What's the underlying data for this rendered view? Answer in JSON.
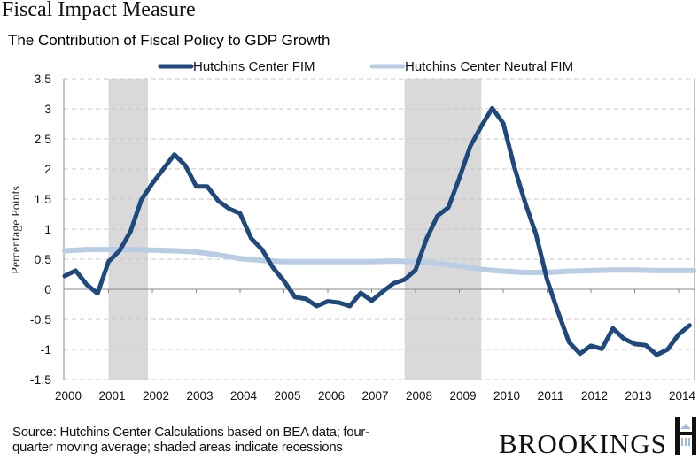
{
  "header": {
    "title": "Fiscal Impact Measure"
  },
  "footer": {
    "source_line1": "Source: Hutchins Center Calculations based on BEA data; four-",
    "source_line2": "quarter moving average; shaded areas indicate recessions",
    "brand": "BROOKINGS"
  },
  "chart_data": {
    "type": "line",
    "title": "The Contribution  of Fiscal Policy to GDP Growth",
    "xlabel": "",
    "ylabel": "Percentage Points",
    "ylim": [
      -1.5,
      3.5
    ],
    "xlim": [
      2000,
      2014.35
    ],
    "yticks": [
      "3.5",
      "3",
      "2.5",
      "2",
      "1.5",
      "1",
      "0.5",
      "0",
      "-0.5",
      "-1",
      "-1.5"
    ],
    "ytick_values": [
      3.5,
      3,
      2.5,
      2,
      1.5,
      1,
      0.5,
      0,
      -0.5,
      -1,
      -1.5
    ],
    "xticks": [
      "2000",
      "2001",
      "2002",
      "2003",
      "2004",
      "2005",
      "2006",
      "2007",
      "2008",
      "2009",
      "2010",
      "2011",
      "2012",
      "2013",
      "2014"
    ],
    "grid": "horizontal-dashed",
    "legend_position": "top",
    "recessions": [
      {
        "start": 2001.0,
        "end": 2001.9
      },
      {
        "start": 2007.75,
        "end": 2009.5
      }
    ],
    "colors": {
      "fim": "#1f497d",
      "neutral": "#b9cde5",
      "recession": "#d9d9d9"
    },
    "series": [
      {
        "name": "Hutchins Center FIM",
        "x": [
          2000.0,
          2000.25,
          2000.5,
          2000.75,
          2001.0,
          2001.25,
          2001.5,
          2001.75,
          2002.0,
          2002.25,
          2002.5,
          2002.75,
          2003.0,
          2003.25,
          2003.5,
          2003.75,
          2004.0,
          2004.25,
          2004.5,
          2004.75,
          2005.0,
          2005.25,
          2005.5,
          2005.75,
          2006.0,
          2006.25,
          2006.5,
          2006.75,
          2007.0,
          2007.25,
          2007.5,
          2007.75,
          2008.0,
          2008.25,
          2008.5,
          2008.75,
          2009.0,
          2009.25,
          2009.5,
          2009.75,
          2010.0,
          2010.25,
          2010.5,
          2010.75,
          2011.0,
          2011.25,
          2011.5,
          2011.75,
          2012.0,
          2012.25,
          2012.5,
          2012.75,
          2013.0,
          2013.25,
          2013.5,
          2013.75,
          2014.0,
          2014.25
        ],
        "values": [
          0.22,
          0.31,
          0.08,
          -0.07,
          0.46,
          0.64,
          0.96,
          1.49,
          1.76,
          2.0,
          2.24,
          2.06,
          1.71,
          1.71,
          1.47,
          1.34,
          1.26,
          0.85,
          0.66,
          0.36,
          0.14,
          -0.13,
          -0.16,
          -0.28,
          -0.2,
          -0.22,
          -0.28,
          -0.06,
          -0.19,
          -0.04,
          0.1,
          0.16,
          0.32,
          0.84,
          1.22,
          1.36,
          1.85,
          2.38,
          2.71,
          3.01,
          2.76,
          2.04,
          1.44,
          0.91,
          0.16,
          -0.38,
          -0.88,
          -1.07,
          -0.94,
          -0.99,
          -0.65,
          -0.82,
          -0.91,
          -0.93,
          -1.09,
          -1.0,
          -0.75,
          -0.6
        ]
      },
      {
        "name": "Hutchins Center Neutral FIM",
        "x": [
          2000.0,
          2000.5,
          2001.0,
          2001.5,
          2002.0,
          2002.5,
          2003.0,
          2003.5,
          2004.0,
          2004.5,
          2005.0,
          2005.5,
          2006.0,
          2006.5,
          2007.0,
          2007.5,
          2008.0,
          2008.5,
          2009.0,
          2009.5,
          2010.0,
          2010.5,
          2011.0,
          2011.5,
          2012.0,
          2012.5,
          2013.0,
          2013.5,
          2014.0,
          2014.35
        ],
        "values": [
          0.64,
          0.66,
          0.66,
          0.66,
          0.65,
          0.64,
          0.62,
          0.57,
          0.51,
          0.48,
          0.46,
          0.46,
          0.46,
          0.46,
          0.46,
          0.47,
          0.46,
          0.43,
          0.39,
          0.33,
          0.3,
          0.28,
          0.28,
          0.3,
          0.31,
          0.32,
          0.32,
          0.31,
          0.31,
          0.31
        ]
      }
    ]
  }
}
